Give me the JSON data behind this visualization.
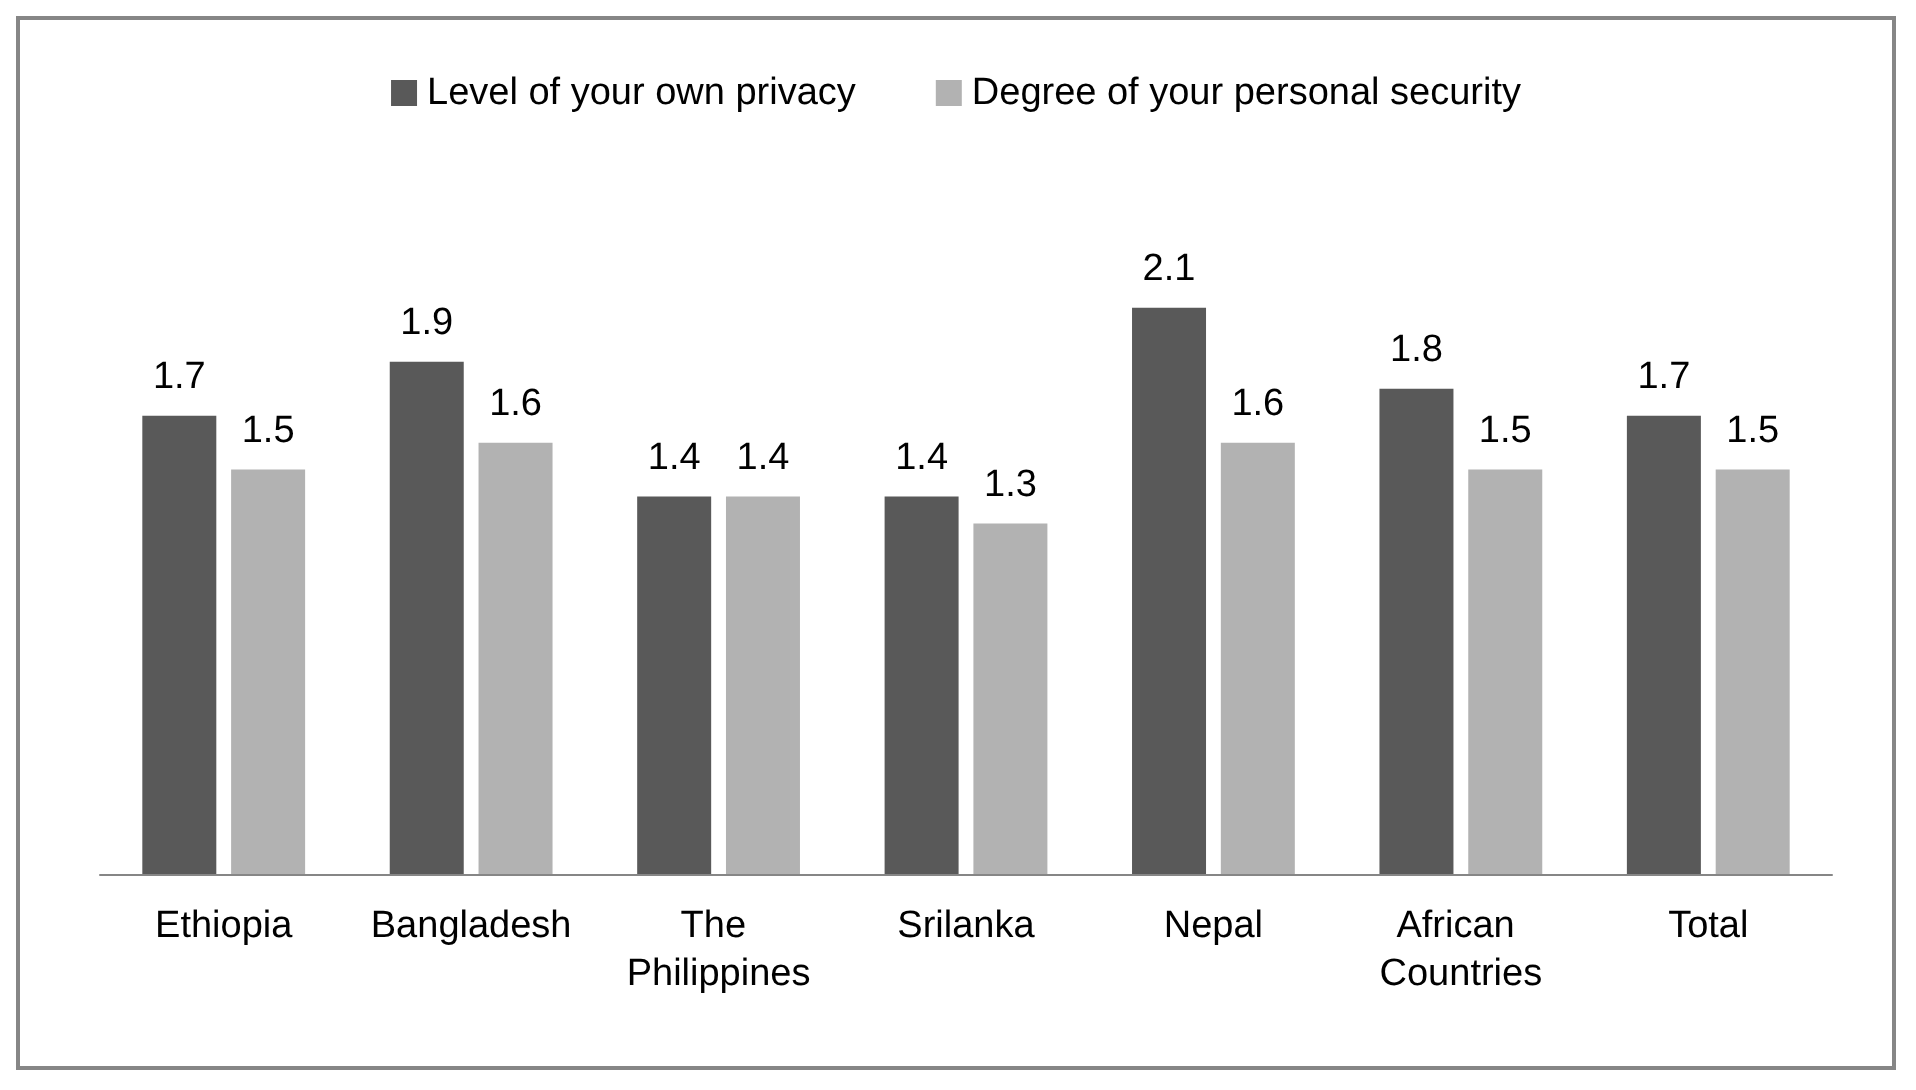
{
  "chart_data": {
    "type": "bar",
    "categories": [
      "Ethiopia",
      "Bangladesh",
      "The Philippines",
      "Srilanka",
      "Nepal",
      "African Countries",
      "Total"
    ],
    "series": [
      {
        "name": "Level of your own privacy",
        "color": "#595959",
        "values": [
          1.7,
          1.9,
          1.4,
          1.4,
          2.1,
          1.8,
          1.7
        ]
      },
      {
        "name": "Degree of your personal security",
        "color": "#b2b2b2",
        "values": [
          1.5,
          1.6,
          1.4,
          1.3,
          1.6,
          1.5,
          1.5
        ]
      }
    ],
    "data_labels": true,
    "legend": "top"
  }
}
